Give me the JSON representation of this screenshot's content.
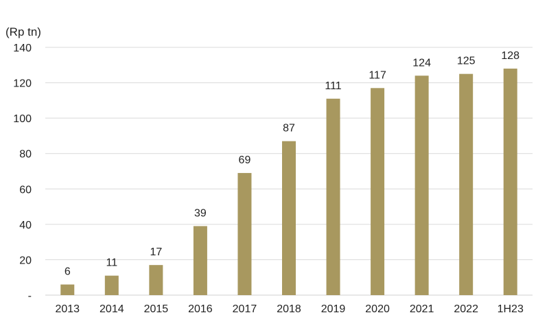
{
  "chart_data": {
    "type": "bar",
    "unit_label": "(Rp tn)",
    "categories": [
      "2013",
      "2014",
      "2015",
      "2016",
      "2017",
      "2018",
      "2019",
      "2020",
      "2021",
      "2022",
      "1H23"
    ],
    "values": [
      6,
      11,
      17,
      39,
      69,
      87,
      111,
      117,
      124,
      125,
      128
    ],
    "value_labels": [
      "6",
      "11",
      "17",
      "39",
      "69",
      "87",
      "111",
      "117",
      "124",
      "125",
      "128"
    ],
    "y_ticks": [
      {
        "value": 0,
        "label": "-"
      },
      {
        "value": 20,
        "label": "20"
      },
      {
        "value": 40,
        "label": "40"
      },
      {
        "value": 60,
        "label": "60"
      },
      {
        "value": 80,
        "label": "80"
      },
      {
        "value": 100,
        "label": "100"
      },
      {
        "value": 120,
        "label": "120"
      },
      {
        "value": 140,
        "label": "140"
      }
    ],
    "ylim": [
      0,
      140
    ],
    "grid": true,
    "legend": "none",
    "bar_color": "#A8985F",
    "grid_color": "#D9D9D9"
  }
}
